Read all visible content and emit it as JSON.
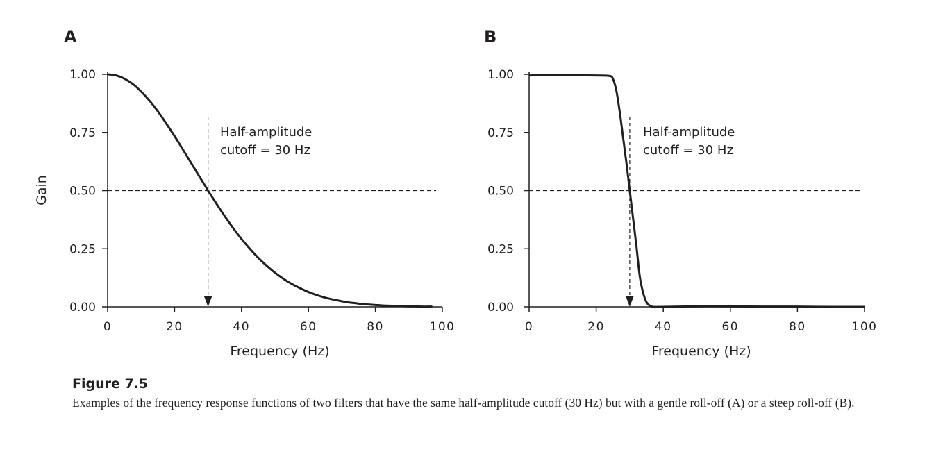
{
  "figure": {
    "caption_title": "Figure 7.5",
    "caption_text": "Examples of the frequency response functions of two filters that have the same half-amplitude cutoff (30 Hz) but with a gentle roll-off (A) or a steep roll-off (B)."
  },
  "chart_data": [
    {
      "panel": "A",
      "type": "line",
      "xlabel": "Frequency (Hz)",
      "ylabel": "Gain",
      "xlim": [
        0,
        100
      ],
      "ylim": [
        0,
        1
      ],
      "xticks": [
        "0",
        "20",
        "40",
        "60",
        "80",
        "100"
      ],
      "yticks": [
        "0.00",
        "0.25",
        "0.50",
        "0.75",
        "1.00"
      ],
      "x": [
        0,
        2,
        4,
        6,
        8,
        10,
        12,
        14,
        16,
        18,
        20,
        22,
        24,
        26,
        28,
        30,
        32,
        34,
        36,
        38,
        40,
        42,
        44,
        46,
        48,
        50,
        52,
        54,
        56,
        58,
        60,
        62,
        64,
        66,
        68,
        70,
        72,
        74,
        76,
        78,
        80,
        82,
        84,
        86,
        88,
        90,
        92,
        94,
        96,
        97
      ],
      "y": [
        1.0,
        0.997,
        0.988,
        0.973,
        0.953,
        0.926,
        0.895,
        0.86,
        0.821,
        0.778,
        0.734,
        0.688,
        0.641,
        0.594,
        0.547,
        0.5,
        0.455,
        0.411,
        0.369,
        0.329,
        0.292,
        0.258,
        0.226,
        0.197,
        0.171,
        0.147,
        0.126,
        0.107,
        0.091,
        0.077,
        0.064,
        0.053,
        0.044,
        0.036,
        0.03,
        0.024,
        0.019,
        0.016,
        0.012,
        0.01,
        0.008,
        0.006,
        0.005,
        0.004,
        0.003,
        0.002,
        0.002,
        0.001,
        0.001,
        0.001
      ],
      "reference_line_y": 0.5,
      "cutoff_x": 30,
      "annotation": [
        "Half-amplitude",
        "cutoff = 30 Hz"
      ]
    },
    {
      "panel": "B",
      "type": "line",
      "xlabel": "Frequency (Hz)",
      "ylabel": "",
      "xlim": [
        0,
        100
      ],
      "ylim": [
        0,
        1
      ],
      "xticks": [
        "0",
        "20",
        "40",
        "60",
        "80",
        "100"
      ],
      "yticks": [
        "0.00",
        "0.25",
        "0.50",
        "0.75",
        "1.00"
      ],
      "x": [
        0,
        5,
        10,
        15,
        20,
        24,
        25,
        26,
        27,
        28,
        29,
        30,
        31,
        32,
        33,
        34,
        35,
        36,
        37,
        40,
        50,
        60,
        70,
        80,
        90,
        100
      ],
      "y": [
        0.995,
        0.997,
        0.997,
        0.996,
        0.995,
        0.993,
        0.98,
        0.93,
        0.84,
        0.73,
        0.62,
        0.5,
        0.38,
        0.26,
        0.13,
        0.06,
        0.02,
        0.005,
        0.0,
        0.0,
        0.002,
        0.002,
        0.001,
        0.001,
        0.0,
        0.0
      ],
      "reference_line_y": 0.5,
      "cutoff_x": 30,
      "annotation": [
        "Half-amplitude",
        "cutoff = 30 Hz"
      ]
    }
  ]
}
